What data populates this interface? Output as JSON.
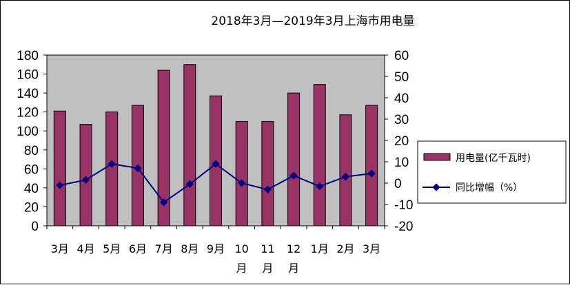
{
  "chart_data": {
    "type": "bar",
    "title": "2018年3月—2019年3月上海市用电量",
    "categories": [
      "3月",
      "4月",
      "5月",
      "6月",
      "7月",
      "8月",
      "9月",
      "10月",
      "11月",
      "12月",
      "1月",
      "2月",
      "3月"
    ],
    "series": [
      {
        "name": "用电量(亿千瓦时)",
        "type": "bar",
        "axis": "left",
        "color": "#993366",
        "values": [
          121,
          107,
          120,
          127,
          164,
          170,
          137,
          110,
          110,
          140,
          149,
          117,
          127
        ]
      },
      {
        "name": "同比增幅（%）",
        "type": "line",
        "axis": "right",
        "color": "#000080",
        "values": [
          -1,
          1.5,
          9,
          7,
          -9,
          -0.5,
          9,
          0,
          -3,
          3.5,
          -1.5,
          3,
          4.5
        ]
      }
    ],
    "y_left": {
      "min": 0,
      "max": 180,
      "step": 20
    },
    "y_right": {
      "min": -20,
      "max": 60,
      "step": 10
    },
    "plot_background": "#c0c0c0",
    "grid": false,
    "legend_position": "right"
  }
}
